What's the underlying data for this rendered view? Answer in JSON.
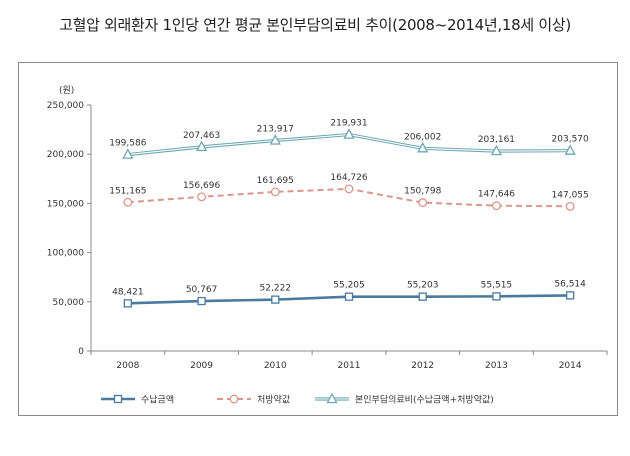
{
  "chart_data": {
    "type": "line",
    "title": "고혈압 외래환자 1인당 연간 평균 본인부담의료비 추이(2008~2014년,18세 이상)",
    "ylabel": "(원)",
    "xlabel": "",
    "ylim": [
      0,
      250000
    ],
    "yticks": [
      0,
      50000,
      100000,
      150000,
      200000,
      250000
    ],
    "ytick_labels": [
      "0",
      "50,000",
      "100,000",
      "150,000",
      "200,000",
      "250,000"
    ],
    "grid": false,
    "legend_position": "bottom",
    "categories": [
      "2008",
      "2009",
      "2010",
      "2011",
      "2012",
      "2013",
      "2014"
    ],
    "series": [
      {
        "name": "수납금액",
        "color": "#4a7a9e",
        "marker": "square",
        "line_style": "solid",
        "values": [
          48421,
          50767,
          52222,
          55205,
          55203,
          55515,
          56514
        ],
        "labels": [
          "48,421",
          "50,767",
          "52,222",
          "55,205",
          "55,203",
          "55,515",
          "56,514"
        ]
      },
      {
        "name": "처방약값",
        "color": "#d9968a",
        "marker": "circle",
        "line_style": "dashed",
        "values": [
          151165,
          156696,
          161695,
          164726,
          150798,
          147646,
          147055
        ],
        "labels": [
          "151,165",
          "156,696",
          "161,695",
          "164,726",
          "150,798",
          "147,646",
          "147,055"
        ]
      },
      {
        "name": "본인부담의료비(수납금액+처방약값)",
        "color": "#6fa7b5",
        "marker": "triangle",
        "line_style": "double",
        "values": [
          199586,
          207463,
          213917,
          219931,
          206002,
          203161,
          203570
        ],
        "labels": [
          "199,586",
          "207,463",
          "213,917",
          "219,931",
          "206,002",
          "203,161",
          "203,570"
        ]
      }
    ]
  }
}
